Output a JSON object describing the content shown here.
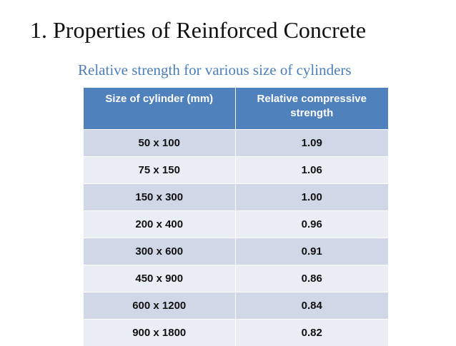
{
  "title": "1. Properties of Reinforced Concrete",
  "subtitle": "Relative strength for various size of cylinders",
  "table": {
    "headers": [
      "Size of cylinder (mm)",
      "Relative compressive strength"
    ],
    "rows": [
      [
        "50 x 100",
        "1.09"
      ],
      [
        "75 x 150",
        "1.06"
      ],
      [
        "150 x 300",
        "1.00"
      ],
      [
        "200 x 400",
        "0.96"
      ],
      [
        "300 x 600",
        "0.91"
      ],
      [
        "450 x 900",
        "0.86"
      ],
      [
        "600 x 1200",
        "0.84"
      ],
      [
        "900 x 1800",
        "0.82"
      ]
    ]
  },
  "colors": {
    "header_bg": "#4f81bd",
    "row_odd": "#d0d8e8",
    "row_even": "#e9edf4",
    "subtitle": "#4a7ebb"
  }
}
